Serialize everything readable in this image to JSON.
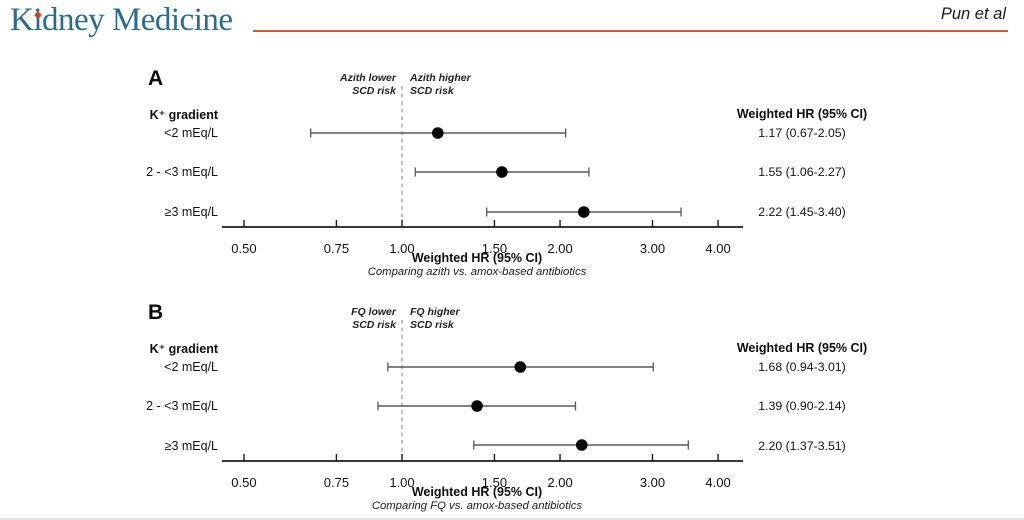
{
  "header": {
    "logo_text": "Kidney Medicine",
    "attribution": "Pun et al"
  },
  "colors": {
    "logo_blue": "#2d6b8e",
    "accent_orange": "#bd5f3c",
    "logo_dot_red": "#c5472a",
    "marker_black": "#050505",
    "ci_gray": "#58585a",
    "reference_dash_gray": "#9b9b9b"
  },
  "chart_data": [
    {
      "type": "forest",
      "panel_label": "A",
      "group_header": "K⁺ gradient",
      "direction_left": "Azith lower\nSCD risk",
      "direction_right": "Azith higher\nSCD risk",
      "column_header": "Weighted HR (95% CI)",
      "xlabel": "Weighted HR (95% CI)",
      "xsublabel": "Comparing azith vs. amox-based antibiotics",
      "x_scale": "log",
      "x_ticks": [
        0.5,
        0.75,
        1.0,
        1.5,
        2.0,
        3.0,
        4.0
      ],
      "x_tick_labels": [
        "0.50",
        "0.75",
        "1.00",
        "1.50",
        "2.00",
        "3.00",
        "4.00"
      ],
      "reference_line": 1.0,
      "rows": [
        {
          "label": "<2 mEq/L",
          "hr": 1.17,
          "ci_low": 0.67,
          "ci_high": 2.05,
          "display": "1.17 (0.67-2.05)"
        },
        {
          "label": "2 - <3 mEq/L",
          "hr": 1.55,
          "ci_low": 1.06,
          "ci_high": 2.27,
          "display": "1.55 (1.06-2.27)"
        },
        {
          "label": "≥3 mEq/L",
          "hr": 2.22,
          "ci_low": 1.45,
          "ci_high": 3.4,
          "display": "2.22 (1.45-3.40)"
        }
      ]
    },
    {
      "type": "forest",
      "panel_label": "B",
      "group_header": "K⁺ gradient",
      "direction_left": "FQ lower\nSCD risk",
      "direction_right": "FQ higher\nSCD risk",
      "column_header": "Weighted HR (95% CI)",
      "xlabel": "Weighted HR (95% CI)",
      "xsublabel": "Comparing FQ vs. amox-based antibiotics",
      "x_scale": "log",
      "x_ticks": [
        0.5,
        0.75,
        1.0,
        1.5,
        2.0,
        3.0,
        4.0
      ],
      "x_tick_labels": [
        "0.50",
        "0.75",
        "1.00",
        "1.50",
        "2.00",
        "3.00",
        "4.00"
      ],
      "reference_line": 1.0,
      "rows": [
        {
          "label": "<2 mEq/L",
          "hr": 1.68,
          "ci_low": 0.94,
          "ci_high": 3.01,
          "display": "1.68 (0.94-3.01)"
        },
        {
          "label": "2 - <3 mEq/L",
          "hr": 1.39,
          "ci_low": 0.9,
          "ci_high": 2.14,
          "display": "1.39 (0.90-2.14)"
        },
        {
          "label": "≥3 mEq/L",
          "hr": 2.2,
          "ci_low": 1.37,
          "ci_high": 3.51,
          "display": "2.20 (1.37-3.51)"
        }
      ]
    }
  ]
}
